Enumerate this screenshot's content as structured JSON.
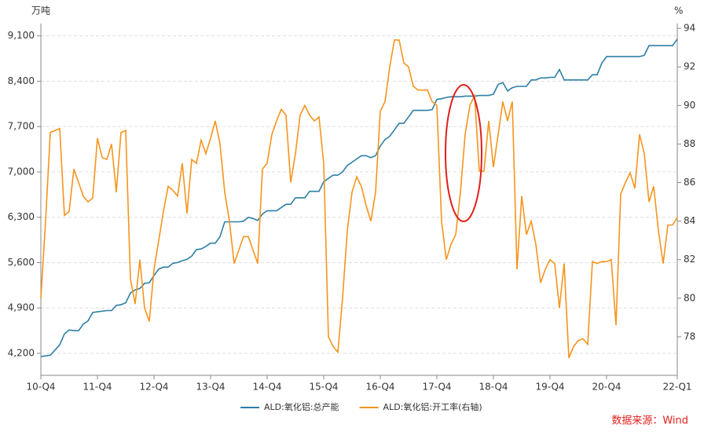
{
  "chart_data": {
    "type": "line",
    "y_label": "万吨",
    "y2_label": "%",
    "source": "数据来源：Wind",
    "categories": [
      "10-Q4",
      null,
      null,
      null,
      null,
      null,
      null,
      null,
      null,
      null,
      null,
      null,
      "11-Q4",
      null,
      null,
      null,
      null,
      null,
      null,
      null,
      null,
      null,
      null,
      null,
      "12-Q4",
      null,
      null,
      null,
      null,
      null,
      null,
      null,
      null,
      null,
      null,
      null,
      "13-Q4",
      null,
      null,
      null,
      null,
      null,
      null,
      null,
      null,
      null,
      null,
      null,
      "14-Q4",
      null,
      null,
      null,
      null,
      null,
      null,
      null,
      null,
      null,
      null,
      null,
      "15-Q4",
      null,
      null,
      null,
      null,
      null,
      null,
      null,
      null,
      null,
      null,
      null,
      "16-Q4",
      null,
      null,
      null,
      null,
      null,
      null,
      null,
      null,
      null,
      null,
      null,
      "17-Q4",
      null,
      null,
      null,
      null,
      null,
      null,
      null,
      null,
      null,
      null,
      null,
      "18-Q4",
      null,
      null,
      null,
      null,
      null,
      null,
      null,
      null,
      null,
      null,
      null,
      "19-Q4",
      null,
      null,
      null,
      null,
      null,
      null,
      null,
      null,
      null,
      null,
      null,
      "20-Q4",
      null,
      null,
      null,
      null,
      null,
      null,
      null,
      null,
      null,
      null,
      null,
      null,
      null,
      null,
      "22-Q1"
    ],
    "series": [
      {
        "name": "ALD:氧化铝:总产能",
        "color": "#2e7fa6",
        "axis": "y",
        "values": [
          4150,
          4160,
          4170,
          4250,
          4330,
          4500,
          4560,
          4550,
          4550,
          4650,
          4700,
          4830,
          4840,
          4850,
          4860,
          4860,
          4940,
          4950,
          4980,
          5130,
          5180,
          5200,
          5280,
          5290,
          5400,
          5500,
          5530,
          5530,
          5590,
          5600,
          5630,
          5650,
          5700,
          5800,
          5810,
          5850,
          5900,
          5900,
          6000,
          6230,
          6230,
          6230,
          6230,
          6240,
          6300,
          6280,
          6250,
          6350,
          6400,
          6400,
          6400,
          6450,
          6500,
          6500,
          6600,
          6600,
          6600,
          6700,
          6700,
          6700,
          6850,
          6900,
          6950,
          6950,
          7000,
          7100,
          7150,
          7200,
          7250,
          7250,
          7220,
          7250,
          7400,
          7500,
          7550,
          7650,
          7750,
          7750,
          7850,
          7950,
          7950,
          7950,
          7950,
          7960,
          8120,
          8130,
          8150,
          8160,
          8160,
          8160,
          8170,
          8170,
          8170,
          8180,
          8180,
          8180,
          8200,
          8350,
          8380,
          8250,
          8300,
          8320,
          8320,
          8320,
          8420,
          8420,
          8450,
          8450,
          8460,
          8460,
          8580,
          8420,
          8420,
          8420,
          8420,
          8420,
          8420,
          8500,
          8500,
          8680,
          8780,
          8780,
          8780,
          8780,
          8780,
          8780,
          8780,
          8780,
          8800,
          8950,
          8950,
          8950,
          8950,
          8950,
          8950,
          9050
        ]
      },
      {
        "name": "ALD:氧化铝:开工率(右轴)",
        "color": "#f7941d",
        "axis": "y2",
        "values": [
          80,
          84,
          88.6,
          88.7,
          88.8,
          84.3,
          84.5,
          86.7,
          86,
          85.3,
          85,
          85.2,
          88.3,
          87.3,
          87.2,
          88,
          85.5,
          88.6,
          88.7,
          81,
          79.7,
          82,
          79.5,
          78.8,
          81.5,
          83,
          84.5,
          85.8,
          85.6,
          85.3,
          87,
          84.4,
          87.2,
          87,
          88.2,
          87.5,
          88.3,
          89.2,
          88,
          85.5,
          84,
          81.8,
          82.5,
          83.2,
          83.2,
          82.5,
          81.8,
          86.7,
          87,
          88.5,
          89.2,
          89.8,
          89.5,
          86,
          87.5,
          89.5,
          90,
          89.5,
          89.2,
          89.4,
          87,
          78,
          77.5,
          77.2,
          80,
          83.5,
          85.5,
          86.3,
          85.8,
          84.8,
          84,
          85.5,
          89.7,
          90.2,
          92,
          93.4,
          93.4,
          92.2,
          92,
          91,
          90.8,
          90.8,
          90.8,
          90.2,
          90,
          84,
          82,
          82.8,
          83.3,
          85.5,
          88.5,
          90,
          90.5,
          86.6,
          86.6,
          89.2,
          86.8,
          88.5,
          90.2,
          89.2,
          90.2,
          81.5,
          85.3,
          83.3,
          84,
          82.8,
          80.8,
          81.5,
          82,
          81.8,
          79.5,
          81.8,
          76.9,
          77.5,
          77.8,
          77.9,
          77.6,
          81.9,
          81.8,
          81.9,
          81.9,
          82,
          78.6,
          85.4,
          86,
          86.5,
          85.7,
          88.5,
          87.5,
          85,
          85.8,
          83.5,
          81.8,
          83.8,
          83.8,
          84.2
        ]
      }
    ],
    "ylim": [
      3860,
      9290
    ],
    "yticks": [
      {
        "value": 4200,
        "label": "4,200"
      },
      {
        "value": 4900,
        "label": "4,900"
      },
      {
        "value": 5600,
        "label": "5,600"
      },
      {
        "value": 6300,
        "label": "6,300"
      },
      {
        "value": 7000,
        "label": "7,000"
      },
      {
        "value": 7700,
        "label": "7,700"
      },
      {
        "value": 8400,
        "label": "8,400"
      },
      {
        "value": 9100,
        "label": "9,100"
      }
    ],
    "y2lim": [
      76,
      94.25
    ],
    "y2ticks": [
      78,
      80,
      82,
      84,
      86,
      88,
      90,
      92,
      94
    ],
    "grid": true
  }
}
